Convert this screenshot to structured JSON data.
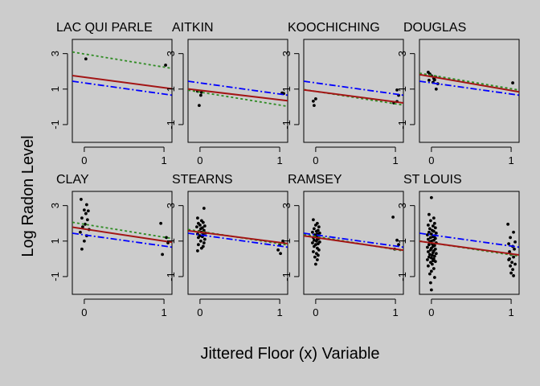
{
  "chart_data": {
    "type": "scatter",
    "title": "",
    "xlabel": "Jittered Floor (x) Variable",
    "ylabel": "Log Radon Level",
    "xlim": [
      -0.15,
      1.1
    ],
    "ylim": [
      -2.0,
      3.8
    ],
    "xticks": [
      0,
      1
    ],
    "yticks": [
      -1,
      1,
      3
    ],
    "colors": {
      "points": "#000000",
      "red": "#a31515",
      "blue": "#0000ff",
      "green": "#2e8b22",
      "background": "#cccccc"
    },
    "panels": [
      {
        "county": "LAC QUI PARLE",
        "lines": {
          "red": [
            1.67,
            1.08
          ],
          "blue": [
            1.35,
            0.72
          ],
          "green": [
            2.98,
            2.24
          ]
        },
        "points": [
          [
            0.02,
            2.7
          ],
          [
            1.02,
            2.35
          ]
        ]
      },
      {
        "county": "AITKIN",
        "lines": {
          "red": [
            0.93,
            0.4
          ],
          "blue": [
            1.35,
            0.72
          ],
          "green": [
            0.83,
            0.1
          ]
        },
        "points": [
          [
            -0.03,
            0.88
          ],
          [
            0.02,
            0.82
          ],
          [
            0.01,
            0.65
          ],
          [
            -0.01,
            0.08
          ],
          [
            1.03,
            0.78
          ],
          [
            1.05,
            0.75
          ]
        ]
      },
      {
        "county": "KOOCHICHING",
        "lines": {
          "red": [
            0.87,
            0.28
          ],
          "blue": [
            1.35,
            0.72
          ],
          "green": [
            0.87,
            0.17
          ]
        },
        "points": [
          [
            -0.03,
            0.32
          ],
          [
            0.0,
            0.45
          ],
          [
            -0.02,
            0.08
          ],
          [
            1.02,
            0.95
          ],
          [
            1.04,
            0.65
          ],
          [
            0.98,
            0.22
          ],
          [
            1.02,
            0.3
          ]
        ]
      },
      {
        "county": "DOUGLAS",
        "lines": {
          "red": [
            1.7,
            0.92
          ],
          "blue": [
            1.35,
            0.72
          ],
          "green": [
            1.78,
            1.02
          ]
        },
        "points": [
          [
            -0.04,
            1.95
          ],
          [
            -0.02,
            1.85
          ],
          [
            0.0,
            1.75
          ],
          [
            0.03,
            1.6
          ],
          [
            -0.03,
            1.5
          ],
          [
            0.02,
            1.38
          ],
          [
            0.05,
            1.7
          ],
          [
            0.08,
            1.3
          ],
          [
            0.04,
            1.52
          ],
          [
            0.06,
            1.0
          ],
          [
            1.02,
            1.35
          ]
        ]
      },
      {
        "county": "CLAY",
        "lines": {
          "red": [
            1.68,
            1.0
          ],
          "blue": [
            1.35,
            0.72
          ],
          "green": [
            1.95,
            1.22
          ]
        },
        "points": [
          [
            -0.04,
            3.35
          ],
          [
            0.03,
            3.05
          ],
          [
            0.0,
            2.75
          ],
          [
            0.05,
            2.7
          ],
          [
            0.02,
            2.55
          ],
          [
            -0.03,
            2.3
          ],
          [
            0.04,
            2.2
          ],
          [
            0.01,
            1.95
          ],
          [
            -0.02,
            1.8
          ],
          [
            0.06,
            1.65
          ],
          [
            -0.05,
            1.5
          ],
          [
            0.03,
            1.3
          ],
          [
            0.0,
            1.0
          ],
          [
            -0.03,
            0.55
          ],
          [
            0.96,
            2.0
          ],
          [
            1.03,
            1.2
          ],
          [
            1.05,
            0.9
          ],
          [
            0.98,
            0.25
          ]
        ]
      },
      {
        "county": "STEARNS",
        "lines": {
          "red": [
            1.5,
            0.92
          ],
          "blue": [
            1.35,
            0.72
          ],
          "green": [
            1.55,
            0.85
          ]
        },
        "points": [
          [
            0.05,
            2.85
          ],
          [
            -0.03,
            2.3
          ],
          [
            0.02,
            2.15
          ],
          [
            0.04,
            2.05
          ],
          [
            -0.02,
            2.0
          ],
          [
            0.0,
            1.9
          ],
          [
            0.06,
            1.85
          ],
          [
            -0.04,
            1.8
          ],
          [
            0.03,
            1.75
          ],
          [
            0.01,
            1.7
          ],
          [
            0.05,
            1.6
          ],
          [
            -0.01,
            1.55
          ],
          [
            0.02,
            1.5
          ],
          [
            0.07,
            1.45
          ],
          [
            -0.03,
            1.4
          ],
          [
            0.04,
            1.35
          ],
          [
            0.0,
            1.3
          ],
          [
            0.03,
            1.25
          ],
          [
            -0.02,
            1.2
          ],
          [
            0.06,
            1.1
          ],
          [
            0.01,
            1.0
          ],
          [
            0.05,
            0.9
          ],
          [
            -0.02,
            0.8
          ],
          [
            0.04,
            0.7
          ],
          [
            0.02,
            0.6
          ],
          [
            -0.03,
            0.45
          ],
          [
            1.04,
            1.0
          ],
          [
            1.0,
            0.8
          ],
          [
            0.98,
            0.5
          ],
          [
            1.01,
            0.3
          ]
        ]
      },
      {
        "county": "RAMSEY",
        "lines": {
          "red": [
            1.2,
            0.55
          ],
          "blue": [
            1.35,
            0.72
          ],
          "green": [
            1.27,
            0.52
          ]
        },
        "points": [
          [
            -0.03,
            2.2
          ],
          [
            0.02,
            2.0
          ],
          [
            0.0,
            1.9
          ],
          [
            0.04,
            1.8
          ],
          [
            -0.02,
            1.7
          ],
          [
            0.03,
            1.6
          ],
          [
            0.01,
            1.55
          ],
          [
            -0.04,
            1.5
          ],
          [
            0.05,
            1.45
          ],
          [
            0.02,
            1.4
          ],
          [
            -0.01,
            1.35
          ],
          [
            0.03,
            1.3
          ],
          [
            0.0,
            1.25
          ],
          [
            -0.03,
            1.2
          ],
          [
            0.04,
            1.15
          ],
          [
            0.02,
            1.1
          ],
          [
            -0.02,
            1.05
          ],
          [
            0.01,
            1.0
          ],
          [
            0.05,
            0.95
          ],
          [
            -0.04,
            0.9
          ],
          [
            0.03,
            0.85
          ],
          [
            0.0,
            0.8
          ],
          [
            -0.02,
            0.7
          ],
          [
            0.02,
            0.6
          ],
          [
            0.04,
            0.5
          ],
          [
            -0.03,
            0.4
          ],
          [
            0.01,
            0.3
          ],
          [
            0.03,
            0.2
          ],
          [
            -0.01,
            0.1
          ],
          [
            0.02,
            -0.05
          ],
          [
            0.0,
            -0.3
          ],
          [
            0.97,
            2.35
          ],
          [
            1.02,
            1.05
          ],
          [
            1.04,
            0.8
          ],
          [
            0.99,
            0.55
          ]
        ]
      },
      {
        "county": "ST LOUIS",
        "lines": {
          "red": [
            0.9,
            0.28
          ],
          "blue": [
            1.35,
            0.72
          ],
          "green": [
            0.9,
            0.22
          ]
        },
        "points": [
          [
            0.0,
            3.45
          ],
          [
            -0.03,
            2.5
          ],
          [
            0.03,
            2.3
          ],
          [
            -0.01,
            2.15
          ],
          [
            0.04,
            2.0
          ],
          [
            -0.04,
            1.9
          ],
          [
            0.02,
            1.85
          ],
          [
            0.05,
            1.75
          ],
          [
            -0.02,
            1.7
          ],
          [
            0.01,
            1.6
          ],
          [
            0.03,
            1.55
          ],
          [
            -0.03,
            1.5
          ],
          [
            0.06,
            1.45
          ],
          [
            0.0,
            1.4
          ],
          [
            -0.05,
            1.35
          ],
          [
            0.04,
            1.3
          ],
          [
            0.02,
            1.25
          ],
          [
            -0.01,
            1.2
          ],
          [
            0.05,
            1.15
          ],
          [
            -0.04,
            1.1
          ],
          [
            0.03,
            1.05
          ],
          [
            0.0,
            1.0
          ],
          [
            -0.02,
            0.95
          ],
          [
            0.06,
            0.9
          ],
          [
            0.01,
            0.85
          ],
          [
            -0.03,
            0.8
          ],
          [
            0.04,
            0.75
          ],
          [
            0.02,
            0.7
          ],
          [
            -0.05,
            0.65
          ],
          [
            0.0,
            0.6
          ],
          [
            0.05,
            0.55
          ],
          [
            -0.01,
            0.5
          ],
          [
            0.03,
            0.45
          ],
          [
            -0.04,
            0.4
          ],
          [
            0.02,
            0.35
          ],
          [
            0.06,
            0.3
          ],
          [
            -0.02,
            0.25
          ],
          [
            0.01,
            0.2
          ],
          [
            0.04,
            0.15
          ],
          [
            -0.03,
            0.1
          ],
          [
            0.0,
            0.05
          ],
          [
            0.03,
            0.0
          ],
          [
            -0.05,
            -0.05
          ],
          [
            0.02,
            -0.1
          ],
          [
            0.05,
            -0.15
          ],
          [
            -0.01,
            -0.2
          ],
          [
            0.01,
            -0.3
          ],
          [
            -0.04,
            -0.4
          ],
          [
            0.03,
            -0.55
          ],
          [
            0.0,
            -0.7
          ],
          [
            -0.02,
            -0.85
          ],
          [
            0.04,
            -1.05
          ],
          [
            -0.01,
            -1.35
          ],
          [
            0.0,
            -1.75
          ],
          [
            0.96,
            1.95
          ],
          [
            1.03,
            1.5
          ],
          [
            0.99,
            1.2
          ],
          [
            1.05,
            0.95
          ],
          [
            0.97,
            0.85
          ],
          [
            1.02,
            0.7
          ],
          [
            1.04,
            0.55
          ],
          [
            0.98,
            0.4
          ],
          [
            1.0,
            0.25
          ],
          [
            1.03,
            0.1
          ],
          [
            0.97,
            -0.05
          ],
          [
            1.01,
            -0.2
          ],
          [
            1.05,
            -0.3
          ],
          [
            0.99,
            -0.4
          ],
          [
            1.02,
            -0.6
          ],
          [
            1.0,
            -0.8
          ],
          [
            1.03,
            -0.95
          ],
          [
            0.98,
            0.0
          ]
        ]
      }
    ]
  }
}
